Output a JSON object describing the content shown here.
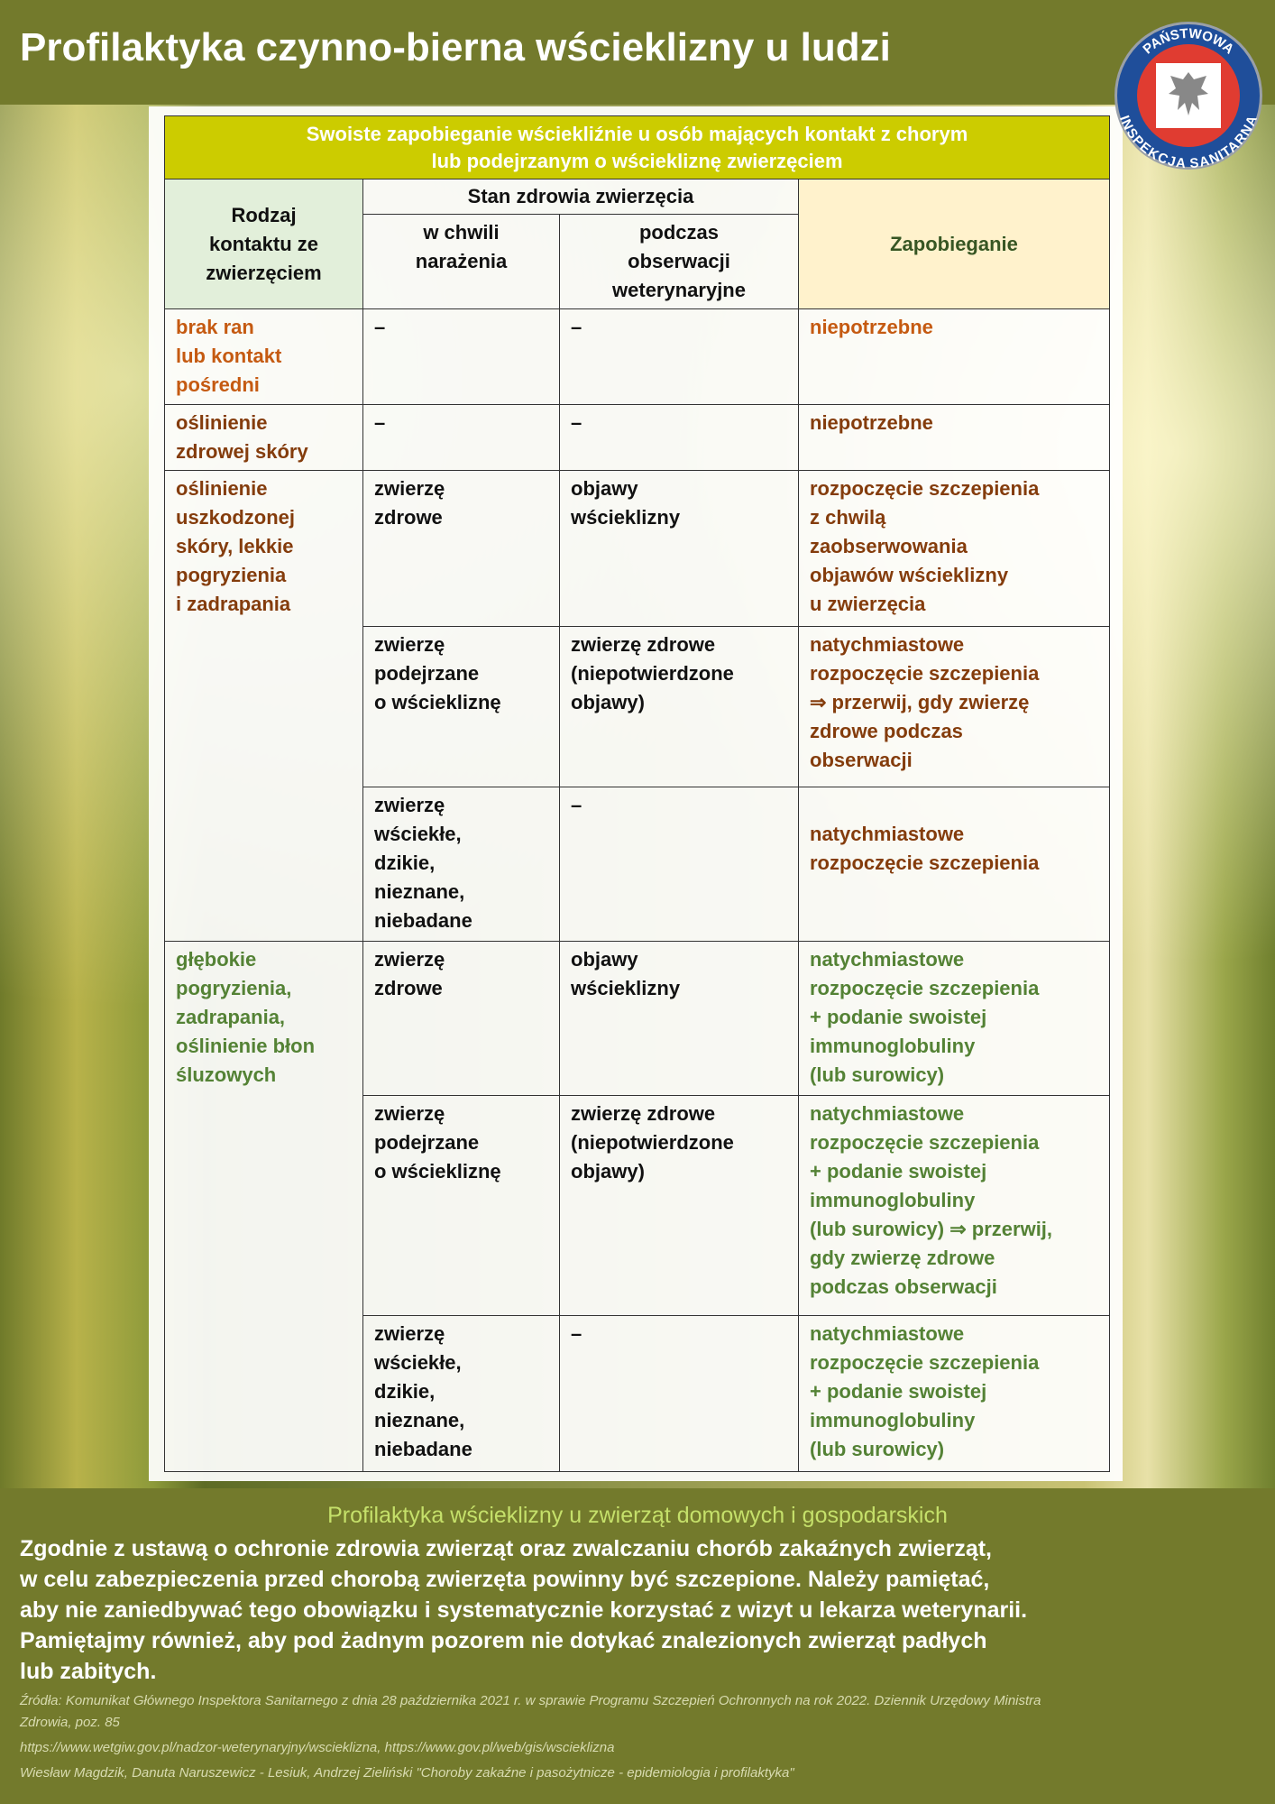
{
  "header": {
    "title": "Profilaktyka czynno-bierna wścieklizny u ludzi",
    "logo_text": [
      "PAŃSTWOWA",
      "INSPEKCJA SANITARNA"
    ],
    "bar_color": "#737a2c"
  },
  "table": {
    "title": "Swoiste zapobieganie wściekliźnie u osób mających kontakt z chorym\nlub podejrzanym o wściekliznę zwierzęciem",
    "col_kind": "Rodzaj\nkontaktu ze\nzwierzęciem",
    "col_state": "Stan zdrowia zwierzęcia",
    "col_exposure": "w chwili\nnarażenia",
    "col_observation": "podczas\nobserwacji\nweterynaryjne",
    "col_prevention": "Zapobieganie",
    "groups": [
      {
        "kind": "brak ran\nlub kontakt\npośredni",
        "color": "#c55a11",
        "rows": [
          {
            "exposure": "–",
            "observation": "–",
            "prevention": "niepotrzebne"
          }
        ]
      },
      {
        "kind": "oślinienie\nzdrowej skóry",
        "color": "#843c0c",
        "rows": [
          {
            "exposure": "–",
            "observation": "–",
            "prevention": "niepotrzebne"
          }
        ]
      },
      {
        "kind": "oślinienie\nuszkodzonej\nskóry, lekkie\npogryzienia\ni zadrapania",
        "color": "#843c0c",
        "rows": [
          {
            "exposure": "zwierzę\nzdrowe",
            "observation": "objawy\nwścieklizny",
            "prevention": "rozpoczęcie szczepienia\nz chwilą\nzaobserwowania\nobjawów wścieklizny\nu zwierzęcia"
          },
          {
            "exposure": "zwierzę\npodejrzane\no wściekliznę",
            "observation": "zwierzę zdrowe\n(niepotwierdzone\nobjawy)",
            "prevention": "natychmiastowe\nrozpoczęcie szczepienia\n⇒ przerwij, gdy zwierzę\nzdrowe podczas\nobserwacji"
          },
          {
            "exposure": "zwierzę\nwściekłe,\ndzikie,\nnieznane,\nniebadane",
            "observation": "–",
            "prevention": "\nnatychmiastowe\nrozpoczęcie szczepienia"
          }
        ]
      },
      {
        "kind": "głębokie\npogryzienia,\nzadrapania,\noślinienie błon\nśluzowych",
        "color": "#548235",
        "rows": [
          {
            "exposure": "zwierzę\nzdrowe",
            "observation": "objawy\nwścieklizny",
            "prevention": "natychmiastowe\nrozpoczęcie szczepienia\n+ podanie swoistej\nimmunoglobuliny\n(lub surowicy)"
          },
          {
            "exposure": "zwierzę\npodejrzane\no wściekliznę",
            "observation": "zwierzę zdrowe\n(niepotwierdzone\nobjawy)",
            "prevention": "natychmiastowe\nrozpoczęcie szczepienia\n+ podanie swoistej\nimmunoglobuliny\n(lub surowicy) ⇒ przerwij,\ngdy zwierzę zdrowe\npodczas obserwacji"
          },
          {
            "exposure": "zwierzę\nwściekłe,\ndzikie,\nnieznane,\nniebadane",
            "observation": "–",
            "prevention": "natychmiastowe\nrozpoczęcie szczepienia\n+ podanie swoistej\nimmunoglobuliny\n(lub surowicy)"
          }
        ]
      }
    ]
  },
  "footer": {
    "title": "Profilaktyka wścieklizny u zwierząt domowych i gospodarskich",
    "body": "Zgodnie z ustawą o ochronie zdrowia zwierząt oraz zwalczaniu chorób zakaźnych zwierząt,\nw celu zabezpieczenia przed chorobą zwierzęta powinny być szczepione. Należy pamiętać,\naby nie zaniedbywać tego obowiązku i systematycznie korzystać z wizyt u lekarza weterynarii.\nPamiętajmy również, aby pod żadnym pozorem nie dotykać znalezionych zwierząt padłych\nlub zabitych.",
    "sources": [
      "Źródła: Komunikat Głównego Inspektora Sanitarnego z dnia 28 października 2021 r. w sprawie Programu Szczepień Ochronnych na rok 2022. Dziennik Urzędowy Ministra",
      "Zdrowia, poz. 85",
      "https://www.wetgiw.gov.pl/nadzor-weterynaryjny/wscieklizna, https://www.gov.pl/web/gis/wscieklizna",
      "Wiesław Magdzik, Danuta Naruszewicz - Lesiuk, Andrzej Zieliński \"Choroby zakaźne i pasożytnicze - epidemiologia i profilaktyka\""
    ]
  }
}
